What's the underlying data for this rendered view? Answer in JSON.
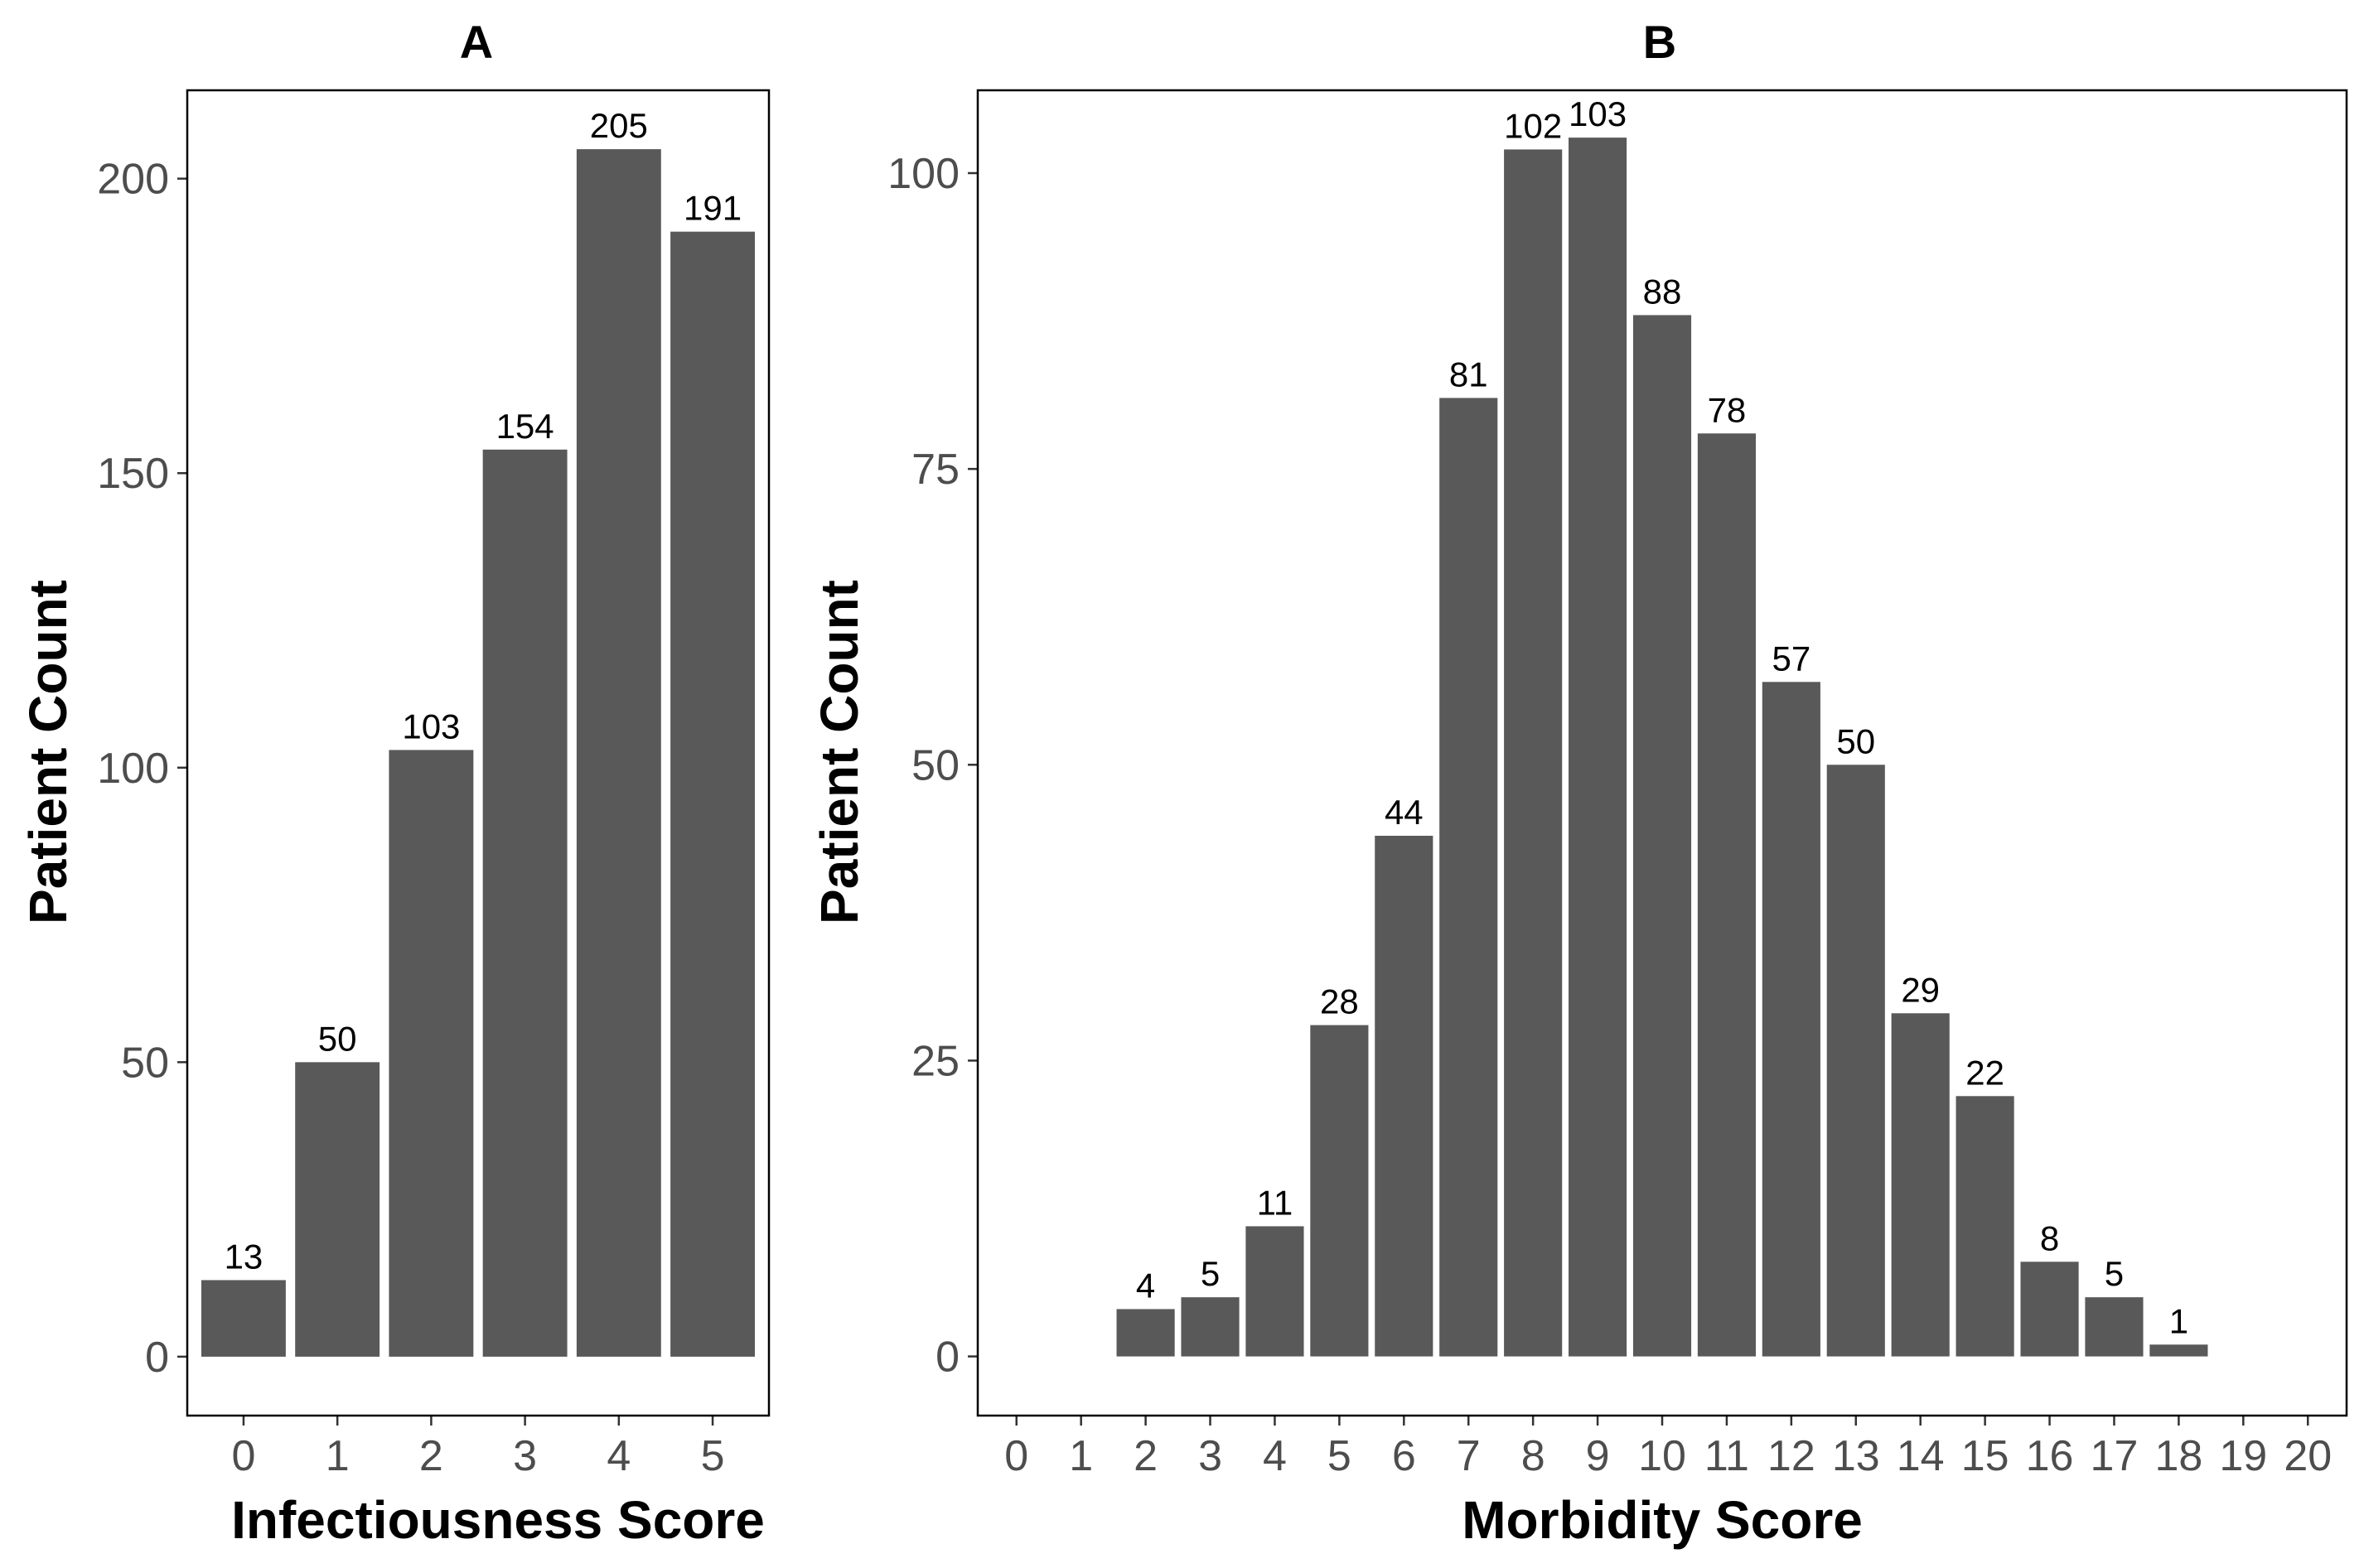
{
  "chart_data": [
    {
      "type": "bar",
      "panel": "A",
      "title": "A",
      "xlabel": "Infectiousness Score",
      "ylabel": "Patient Count",
      "categories": [
        "0",
        "1",
        "2",
        "3",
        "4",
        "5"
      ],
      "values": [
        13,
        50,
        103,
        154,
        205,
        191
      ],
      "data_labels": [
        "13",
        "50",
        "103",
        "154",
        "205",
        "191"
      ],
      "yticks": [
        0,
        50,
        100,
        150,
        200
      ],
      "ylim": [
        -10,
        215
      ],
      "bar_color": "#595959",
      "grid": false
    },
    {
      "type": "bar",
      "panel": "B",
      "title": "B",
      "xlabel": "Morbidity Score",
      "ylabel": "Patient Count",
      "categories": [
        "0",
        "1",
        "2",
        "3",
        "4",
        "5",
        "6",
        "7",
        "8",
        "9",
        "10",
        "11",
        "12",
        "13",
        "14",
        "15",
        "16",
        "17",
        "18",
        "19",
        "20"
      ],
      "values": [
        0,
        0,
        4,
        5,
        11,
        28,
        44,
        81,
        102,
        103,
        88,
        78,
        57,
        50,
        29,
        22,
        8,
        5,
        1,
        0,
        0
      ],
      "data_labels": [
        "",
        "",
        "4",
        "5",
        "11",
        "28",
        "44",
        "81",
        "102",
        "103",
        "88",
        "78",
        "57",
        "50",
        "29",
        "22",
        "8",
        "5",
        "1",
        "",
        ""
      ],
      "yticks": [
        0,
        25,
        50,
        75,
        100
      ],
      "ylim": [
        -5,
        107
      ],
      "bar_color": "#595959",
      "grid": false
    }
  ]
}
